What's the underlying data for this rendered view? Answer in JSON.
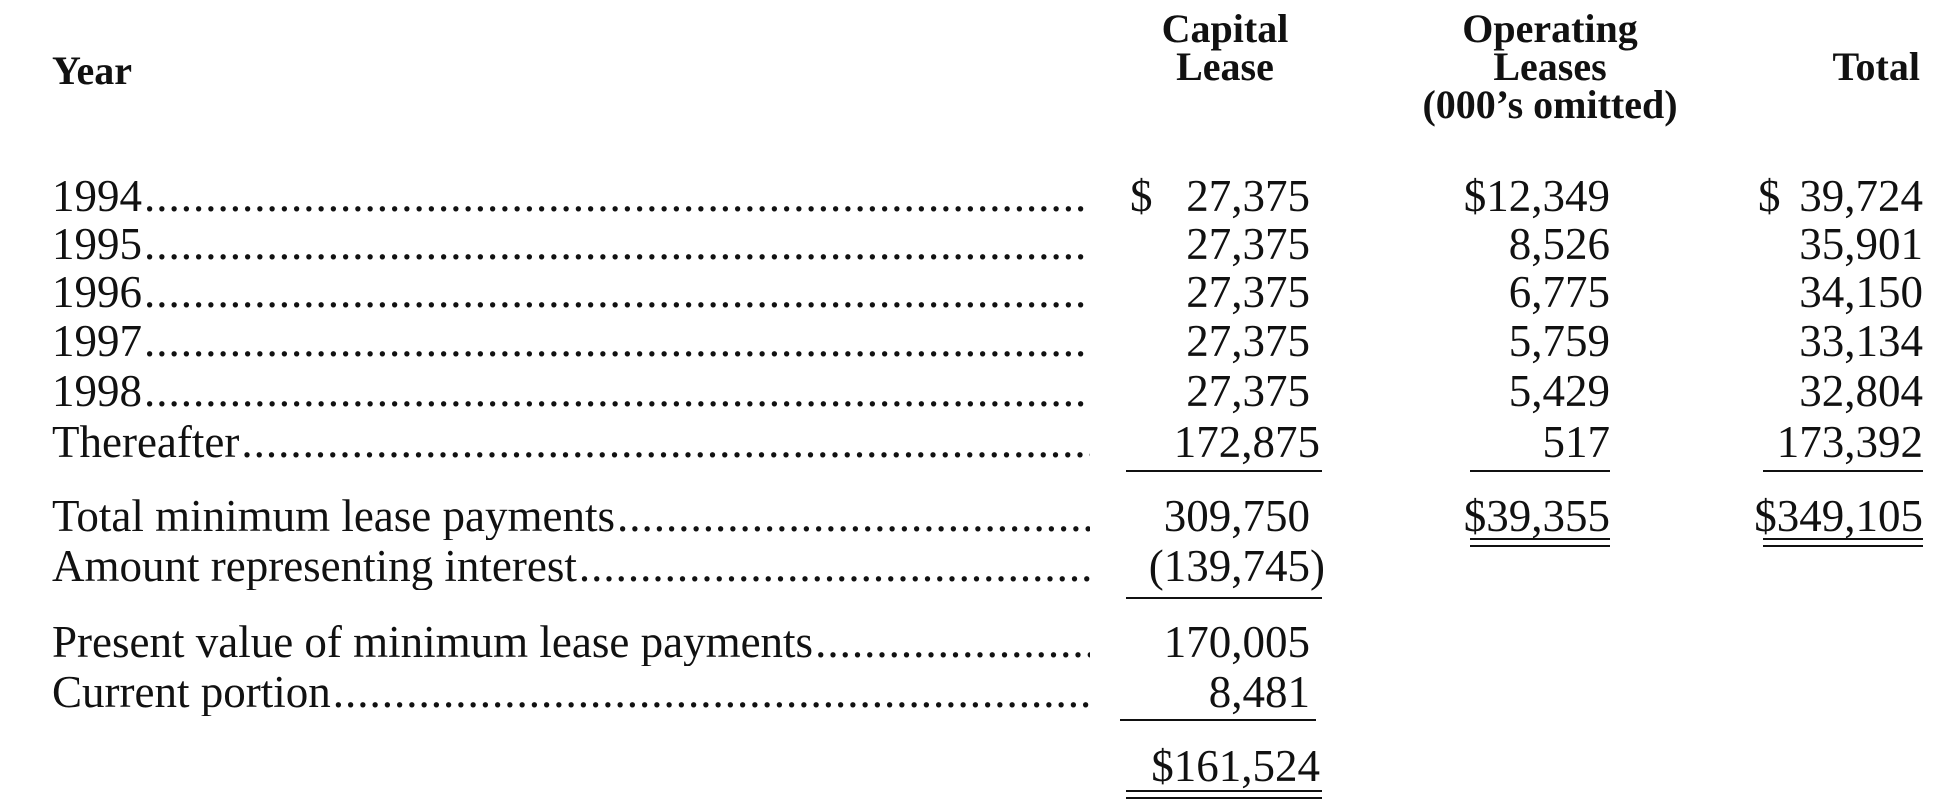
{
  "header": {
    "year": "Year",
    "capital_lease": [
      "Capital",
      "Lease"
    ],
    "operating_leases": [
      "Operating",
      "Leases",
      "(000’s omitted)"
    ],
    "total": "Total"
  },
  "rows": [
    {
      "label": "1994",
      "capital": "27,375",
      "capital_dollar": "$",
      "operating": "$12,349",
      "total": "39,724",
      "total_dollar": "$"
    },
    {
      "label": "1995",
      "capital": "27,375",
      "operating": "8,526",
      "total": "35,901"
    },
    {
      "label": "1996",
      "capital": "27,375",
      "operating": "6,775",
      "total": "34,150"
    },
    {
      "label": "1997",
      "capital": "27,375",
      "operating": "5,759",
      "total": "33,134"
    },
    {
      "label": "1998",
      "capital": "27,375",
      "operating": "5,429",
      "total": "32,804"
    },
    {
      "label": "Thereafter",
      "capital": "172,875",
      "operating": "517",
      "total": "173,392"
    }
  ],
  "totals": {
    "min_payments": {
      "label": "Total minimum lease payments",
      "capital": "309,750",
      "operating": "$39,355",
      "total": "$349,105"
    },
    "interest": {
      "label": "Amount representing interest",
      "capital": "(139,745)"
    },
    "present_value": {
      "label": "Present value of minimum lease payments",
      "capital": "170,005"
    },
    "current_portion": {
      "label": "Current portion",
      "capital": "8,481"
    },
    "long_term": {
      "capital": "$161,524"
    }
  }
}
